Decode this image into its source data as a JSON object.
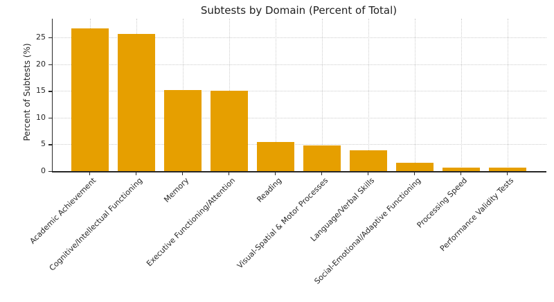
{
  "chart_data": {
    "type": "bar",
    "title": "Subtests by Domain (Percent of Total)",
    "xlabel": "",
    "ylabel": "Percent of Subtests (%)",
    "categories": [
      "Academic Achievement",
      "Cognitive/Intellectual Functioning",
      "Memory",
      "Executive Functioning/Attention",
      "Reading",
      "Visual-Spatial & Motor Processes",
      "Language/Verbal Skills",
      "Social-Emotional/Adaptive Functioning",
      "Processing Speed",
      "Performance Validity Tests"
    ],
    "values": [
      26.7,
      25.7,
      15.2,
      15.0,
      5.5,
      4.8,
      3.9,
      1.5,
      0.7,
      0.7
    ],
    "yticks": [
      0,
      5,
      10,
      15,
      20,
      25
    ],
    "ylim": [
      0,
      28.5
    ],
    "grid": true,
    "grid_style": "dotted",
    "legend": false,
    "colors": {
      "bar": "#E69F00",
      "grid": "#CCCCCC",
      "axis": "#262626",
      "text": "#262626",
      "title": "#1F1F1F",
      "background": "#FFFFFF"
    }
  }
}
